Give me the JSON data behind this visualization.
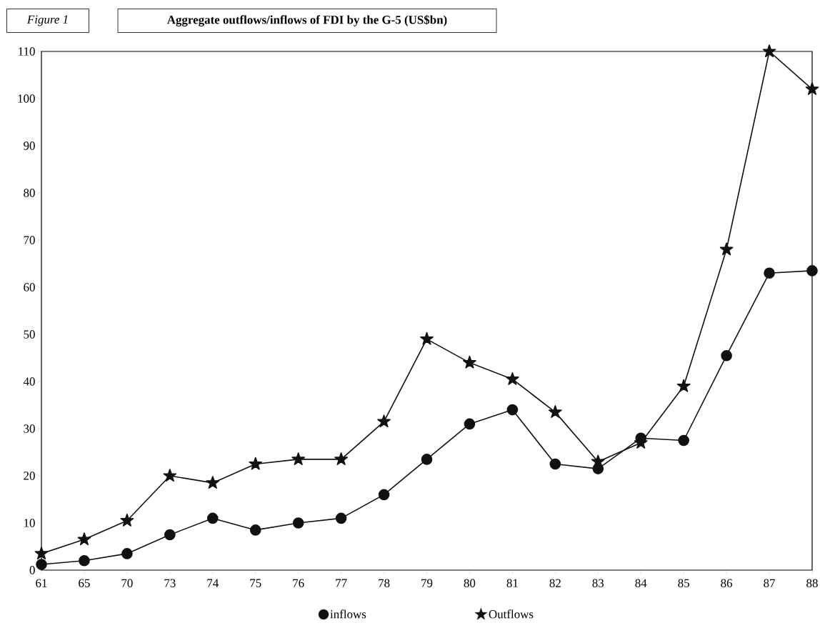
{
  "chart_data": {
    "type": "line",
    "title": "Aggregate outflows/inflows of FDI by the G-5 (US$bn)",
    "annotations": [
      "Figure 1"
    ],
    "categories": [
      "61",
      "65",
      "70",
      "73",
      "74",
      "75",
      "76",
      "77",
      "78",
      "79",
      "80",
      "81",
      "82",
      "83",
      "84",
      "85",
      "86",
      "87",
      "88"
    ],
    "series": [
      {
        "name": "inflows",
        "color": "#111111",
        "marker": "circle",
        "values": [
          1.2,
          2,
          3.5,
          7.5,
          11,
          8.5,
          10,
          11,
          16,
          23.5,
          31,
          34,
          22.5,
          21.5,
          28,
          27.5,
          45.5,
          63,
          63.5
        ]
      },
      {
        "name": "Outflows",
        "color": "#111111",
        "marker": "star",
        "values": [
          3.5,
          6.5,
          10.5,
          20,
          18.5,
          22.5,
          23.5,
          23.5,
          31.5,
          49,
          44,
          40.5,
          33.5,
          23,
          27,
          39,
          68,
          110,
          102
        ]
      }
    ],
    "ylim": [
      0,
      110
    ],
    "yticks": [
      0,
      10,
      20,
      30,
      40,
      50,
      60,
      70,
      80,
      90,
      100,
      110
    ],
    "grid": false,
    "legend": "bottom",
    "line_style": "solid"
  }
}
